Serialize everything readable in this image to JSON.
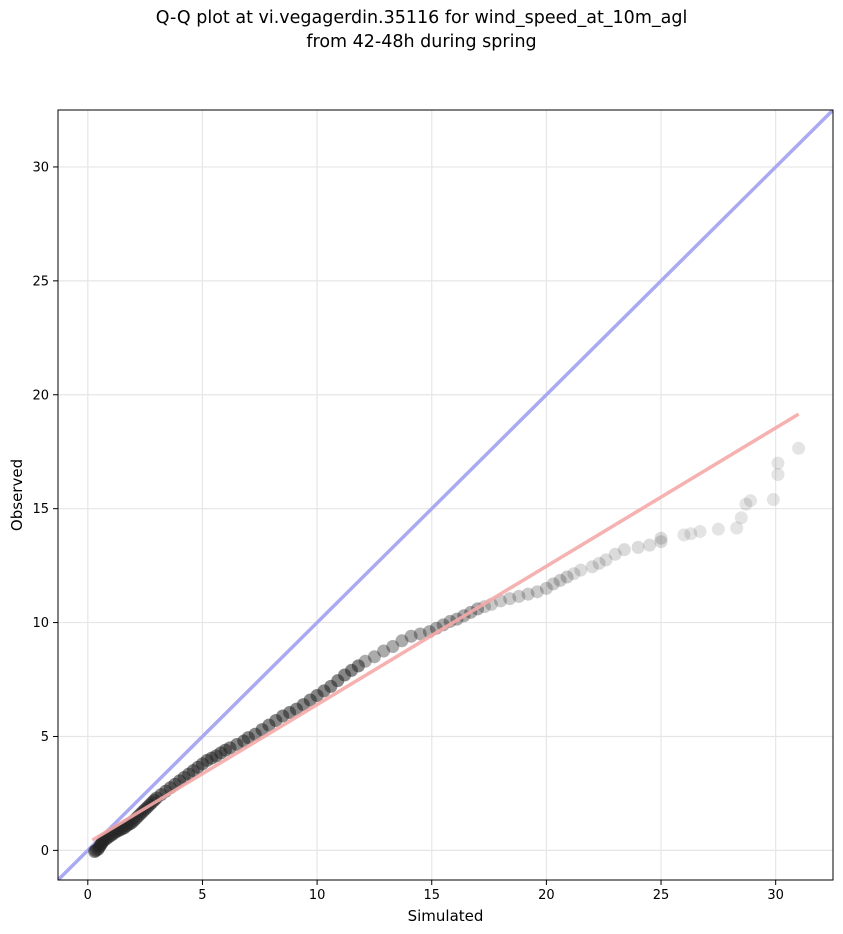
{
  "chart_data": {
    "type": "scatter",
    "title": [
      "Q-Q plot at vi.vegagerdin.35116 for wind_speed_at_10m_agl",
      "from 42-48h during spring"
    ],
    "xlabel": "Simulated",
    "ylabel": "Observed",
    "xlim": [
      -1.3,
      32.5
    ],
    "ylim": [
      -1.3,
      32.5
    ],
    "xticks": [
      0,
      5,
      10,
      15,
      20,
      25,
      30
    ],
    "yticks": [
      0,
      5,
      10,
      15,
      20,
      25,
      30
    ],
    "grid": true,
    "reference_line": {
      "name": "1:1",
      "color": "#aaaaf2",
      "from": [
        -1.3,
        -1.3
      ],
      "to": [
        32.5,
        32.5
      ]
    },
    "fit_line": {
      "color": "#f5a8a8",
      "from": [
        0.2,
        0.45
      ],
      "to": [
        31.0,
        19.15
      ]
    },
    "points_color": "#222222",
    "points": [
      [
        0.3,
        -0.05
      ],
      [
        0.35,
        0.0
      ],
      [
        0.45,
        0.05
      ],
      [
        0.5,
        0.15
      ],
      [
        0.55,
        0.22
      ],
      [
        0.6,
        0.3
      ],
      [
        0.65,
        0.38
      ],
      [
        0.7,
        0.45
      ],
      [
        0.8,
        0.5
      ],
      [
        0.9,
        0.58
      ],
      [
        1.0,
        0.65
      ],
      [
        1.1,
        0.72
      ],
      [
        1.2,
        0.8
      ],
      [
        1.3,
        0.85
      ],
      [
        1.4,
        0.9
      ],
      [
        1.5,
        0.95
      ],
      [
        1.6,
        1.0
      ],
      [
        1.7,
        1.08
      ],
      [
        1.8,
        1.15
      ],
      [
        1.9,
        1.2
      ],
      [
        2.0,
        1.3
      ],
      [
        2.1,
        1.4
      ],
      [
        2.2,
        1.5
      ],
      [
        2.3,
        1.6
      ],
      [
        2.4,
        1.7
      ],
      [
        2.5,
        1.8
      ],
      [
        2.6,
        1.9
      ],
      [
        2.7,
        2.0
      ],
      [
        2.8,
        2.1
      ],
      [
        2.9,
        2.2
      ],
      [
        3.0,
        2.3
      ],
      [
        3.2,
        2.45
      ],
      [
        3.4,
        2.6
      ],
      [
        3.6,
        2.75
      ],
      [
        3.8,
        2.9
      ],
      [
        4.0,
        3.05
      ],
      [
        4.2,
        3.2
      ],
      [
        4.4,
        3.35
      ],
      [
        4.6,
        3.5
      ],
      [
        4.8,
        3.65
      ],
      [
        5.0,
        3.8
      ],
      [
        5.2,
        3.95
      ],
      [
        5.4,
        4.05
      ],
      [
        5.6,
        4.15
      ],
      [
        5.8,
        4.28
      ],
      [
        6.0,
        4.4
      ],
      [
        6.2,
        4.5
      ],
      [
        6.5,
        4.65
      ],
      [
        6.8,
        4.8
      ],
      [
        7.0,
        4.95
      ],
      [
        7.3,
        5.1
      ],
      [
        7.6,
        5.3
      ],
      [
        7.9,
        5.5
      ],
      [
        8.2,
        5.7
      ],
      [
        8.5,
        5.9
      ],
      [
        8.8,
        6.05
      ],
      [
        9.1,
        6.2
      ],
      [
        9.4,
        6.4
      ],
      [
        9.7,
        6.6
      ],
      [
        10.0,
        6.8
      ],
      [
        10.3,
        7.0
      ],
      [
        10.6,
        7.2
      ],
      [
        10.9,
        7.45
      ],
      [
        11.2,
        7.7
      ],
      [
        11.5,
        7.9
      ],
      [
        11.8,
        8.1
      ],
      [
        12.1,
        8.3
      ],
      [
        12.5,
        8.5
      ],
      [
        12.9,
        8.75
      ],
      [
        13.3,
        8.95
      ],
      [
        13.7,
        9.2
      ],
      [
        14.1,
        9.4
      ],
      [
        14.5,
        9.5
      ],
      [
        14.9,
        9.6
      ],
      [
        15.2,
        9.75
      ],
      [
        15.5,
        9.9
      ],
      [
        15.8,
        10.05
      ],
      [
        16.1,
        10.15
      ],
      [
        16.4,
        10.3
      ],
      [
        16.7,
        10.45
      ],
      [
        17.0,
        10.6
      ],
      [
        17.3,
        10.7
      ],
      [
        17.6,
        10.8
      ],
      [
        18.0,
        10.95
      ],
      [
        18.4,
        11.05
      ],
      [
        18.8,
        11.15
      ],
      [
        19.2,
        11.25
      ],
      [
        19.6,
        11.35
      ],
      [
        20.0,
        11.5
      ],
      [
        20.3,
        11.7
      ],
      [
        20.6,
        11.85
      ],
      [
        20.9,
        12.0
      ],
      [
        21.2,
        12.15
      ],
      [
        21.5,
        12.3
      ],
      [
        22.0,
        12.45
      ],
      [
        22.3,
        12.6
      ],
      [
        22.6,
        12.75
      ],
      [
        23.0,
        13.0
      ],
      [
        23.4,
        13.2
      ],
      [
        24.0,
        13.3
      ],
      [
        24.5,
        13.4
      ],
      [
        25.0,
        13.55
      ],
      [
        25.0,
        13.7
      ],
      [
        26.0,
        13.85
      ],
      [
        26.3,
        13.9
      ],
      [
        26.7,
        14.0
      ],
      [
        27.5,
        14.1
      ],
      [
        28.3,
        14.15
      ],
      [
        28.5,
        14.6
      ],
      [
        28.7,
        15.2
      ],
      [
        28.9,
        15.35
      ],
      [
        29.9,
        15.4
      ],
      [
        30.1,
        16.5
      ],
      [
        30.1,
        17.0
      ],
      [
        31.0,
        17.65
      ]
    ]
  }
}
